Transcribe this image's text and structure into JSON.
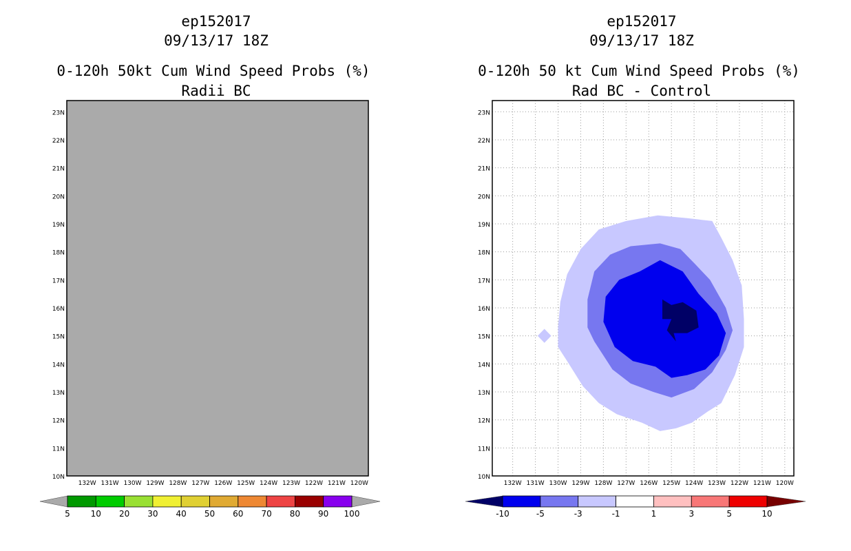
{
  "chart_data": [
    {
      "type": "heatmap",
      "title_line1": "ep152017",
      "title_line2": "09/13/17 18Z",
      "title_line3": "0-120h 50kt Cum Wind Speed Probs (%)",
      "subtitle": "Radii BC",
      "xlim": [
        -132.9,
        -119.6
      ],
      "ylim": [
        10,
        23.4
      ],
      "x_ticks": [
        "132W",
        "131W",
        "130W",
        "129W",
        "128W",
        "127W",
        "126W",
        "125W",
        "124W",
        "123W",
        "122W",
        "121W",
        "120W"
      ],
      "y_ticks": [
        "10N",
        "11N",
        "12N",
        "13N",
        "14N",
        "15N",
        "16N",
        "17N",
        "18N",
        "19N",
        "20N",
        "21N",
        "22N",
        "23N"
      ],
      "grid": false,
      "fill_color": "#aaaaaa",
      "colorbar": {
        "labels": [
          "5",
          "10",
          "20",
          "30",
          "40",
          "50",
          "60",
          "70",
          "80",
          "90",
          "100"
        ],
        "colors": [
          "#009900",
          "#00cc00",
          "#99e033",
          "#f0f033",
          "#e0d033",
          "#e0aa33",
          "#ee8833",
          "#ee4444",
          "#990000",
          "#8800ee"
        ],
        "end_colors": [
          "#aaaaaa",
          "#aaaaaa"
        ]
      }
    },
    {
      "type": "heatmap",
      "title_line1": "ep152017",
      "title_line2": "09/13/17 18Z",
      "title_line3": "0-120h 50 kt Cum Wind Speed Probs (%)",
      "subtitle": "Rad BC - Control",
      "xlim": [
        -132.9,
        -119.6
      ],
      "ylim": [
        10,
        23.4
      ],
      "x_ticks": [
        "132W",
        "131W",
        "130W",
        "129W",
        "128W",
        "127W",
        "126W",
        "125W",
        "124W",
        "123W",
        "122W",
        "121W",
        "120W"
      ],
      "y_ticks": [
        "10N",
        "11N",
        "12N",
        "13N",
        "14N",
        "15N",
        "16N",
        "17N",
        "18N",
        "19N",
        "20N",
        "21N",
        "22N",
        "23N"
      ],
      "grid": true,
      "contours": [
        {
          "level": "-1 to -3",
          "color": "#c8c8ff",
          "points": [
            [
              -130.0,
              15.3
            ],
            [
              -129.9,
              16.2
            ],
            [
              -129.6,
              17.2
            ],
            [
              -129.0,
              18.1
            ],
            [
              -128.2,
              18.8
            ],
            [
              -127.0,
              19.1
            ],
            [
              -125.6,
              19.3
            ],
            [
              -124.3,
              19.2
            ],
            [
              -123.2,
              19.1
            ],
            [
              -122.8,
              18.5
            ],
            [
              -122.3,
              17.7
            ],
            [
              -121.9,
              16.8
            ],
            [
              -121.8,
              15.6
            ],
            [
              -121.8,
              14.6
            ],
            [
              -122.2,
              13.6
            ],
            [
              -122.8,
              12.6
            ],
            [
              -123.4,
              12.3
            ],
            [
              -124.1,
              11.9
            ],
            [
              -124.8,
              11.7
            ],
            [
              -125.5,
              11.6
            ],
            [
              -126.3,
              11.9
            ],
            [
              -127.4,
              12.2
            ],
            [
              -128.2,
              12.6
            ],
            [
              -128.9,
              13.2
            ],
            [
              -129.6,
              14.1
            ],
            [
              -130.0,
              14.6
            ]
          ]
        },
        {
          "level": "-1 to -3",
          "color": "#c8c8ff",
          "points": [
            [
              -130.9,
              15.0
            ],
            [
              -130.6,
              15.25
            ],
            [
              -130.3,
              15.0
            ],
            [
              -130.6,
              14.75
            ]
          ]
        },
        {
          "level": "-3 to -5",
          "color": "#7777f0",
          "points": [
            [
              -128.7,
              15.3
            ],
            [
              -128.7,
              16.3
            ],
            [
              -128.4,
              17.3
            ],
            [
              -127.7,
              17.9
            ],
            [
              -126.8,
              18.2
            ],
            [
              -125.5,
              18.3
            ],
            [
              -124.6,
              18.1
            ],
            [
              -124.0,
              17.6
            ],
            [
              -123.3,
              17.0
            ],
            [
              -122.6,
              16.0
            ],
            [
              -122.3,
              15.2
            ],
            [
              -122.6,
              14.5
            ],
            [
              -123.2,
              13.7
            ],
            [
              -124.0,
              13.1
            ],
            [
              -125.0,
              12.8
            ],
            [
              -125.8,
              13.0
            ],
            [
              -126.8,
              13.3
            ],
            [
              -127.6,
              13.8
            ],
            [
              -128.0,
              14.3
            ],
            [
              -128.4,
              14.8
            ]
          ]
        },
        {
          "level": "-5 to -10",
          "color": "#0000ee",
          "points": [
            [
              -128.0,
              15.5
            ],
            [
              -127.9,
              16.4
            ],
            [
              -127.3,
              17.0
            ],
            [
              -126.4,
              17.3
            ],
            [
              -125.5,
              17.7
            ],
            [
              -124.5,
              17.3
            ],
            [
              -123.8,
              16.5
            ],
            [
              -123.0,
              15.8
            ],
            [
              -122.6,
              15.1
            ],
            [
              -122.9,
              14.3
            ],
            [
              -123.5,
              13.8
            ],
            [
              -124.3,
              13.6
            ],
            [
              -125.0,
              13.5
            ],
            [
              -125.7,
              13.9
            ],
            [
              -126.7,
              14.1
            ],
            [
              -127.5,
              14.6
            ]
          ]
        },
        {
          "level": "< -10",
          "color": "#000066",
          "points": [
            [
              -125.4,
              15.6
            ],
            [
              -125.4,
              16.3
            ],
            [
              -125.0,
              16.1
            ],
            [
              -124.5,
              16.2
            ],
            [
              -123.9,
              15.9
            ],
            [
              -123.8,
              15.3
            ],
            [
              -124.3,
              15.1
            ],
            [
              -124.9,
              15.1
            ],
            [
              -124.8,
              14.8
            ],
            [
              -125.2,
              15.2
            ],
            [
              -125.0,
              15.6
            ]
          ]
        }
      ],
      "colorbar": {
        "labels": [
          "-10",
          "-5",
          "-3",
          "-1",
          "1",
          "3",
          "5",
          "10"
        ],
        "colors": [
          "#0000ee",
          "#7777f0",
          "#c8c8ff",
          "#ffffff",
          "#ffc0c0",
          "#f87777",
          "#ee0000"
        ],
        "end_colors": [
          "#000066",
          "#770000"
        ]
      }
    }
  ]
}
